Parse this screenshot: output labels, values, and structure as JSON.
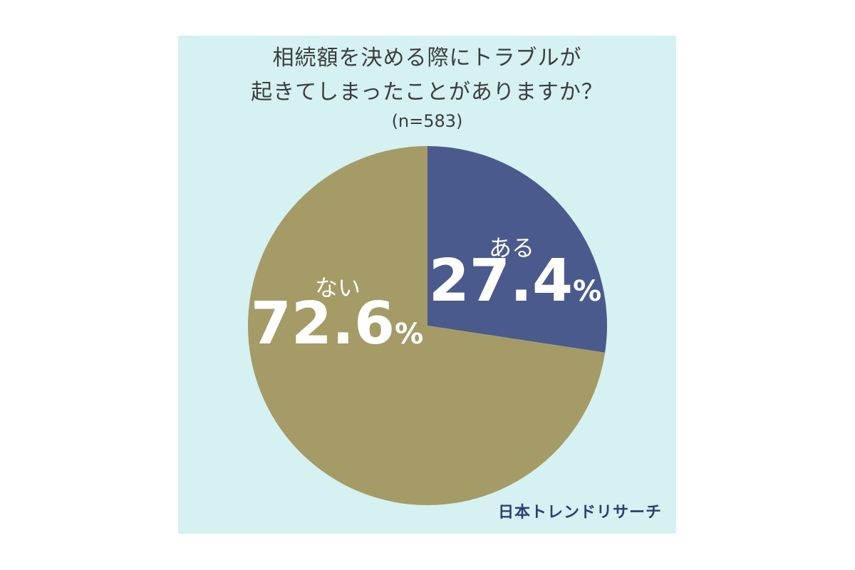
{
  "title_lines": [
    "相続額を決める際にトラブルが",
    "起きてしまったことがありますか？"
  ],
  "sample_size": "(n=583)",
  "brand": "日本トレンドリサーチ",
  "colors": {
    "background": "#d5f1f1",
    "slice_aru": "#4a5a8c",
    "slice_nai": "#a59b67",
    "label": "#ffffff"
  },
  "chart_data": {
    "type": "pie",
    "title": "相続額を決める際にトラブルが起きてしまったことがありますか？",
    "subtitle": "(n=583)",
    "start": "12 o'clock, clockwise",
    "categories": [
      "ある",
      "ない"
    ],
    "values": [
      27.4,
      72.6
    ],
    "unit": "%",
    "value_labels": [
      "27.4",
      "72.6"
    ]
  }
}
